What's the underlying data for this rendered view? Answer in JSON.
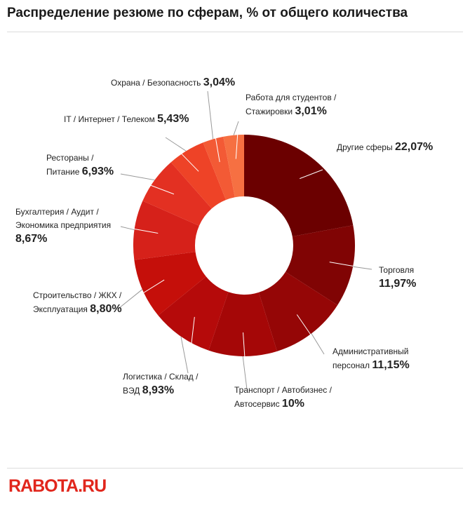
{
  "title": "Распределение резюме по сферам, % от общего количества",
  "logo": "RABOTA.RU",
  "chart_data": {
    "type": "donut",
    "title": "Распределение резюме по сферам, % от общего количества",
    "unit": "%",
    "start_angle_deg": 0,
    "direction": "clockwise",
    "slices": [
      {
        "label": "Другие сферы",
        "value": 22.07,
        "display": "22,07%",
        "color": "#6b0000"
      },
      {
        "label": "Торговля",
        "value": 11.97,
        "display": "11,97%",
        "color": "#800404"
      },
      {
        "label": "Административный персонал",
        "value": 11.15,
        "display": "11,15%",
        "color": "#950606"
      },
      {
        "label": "Транспорт / Автобизнес / Автосервис",
        "value": 10,
        "display": "10%",
        "color": "#a50707"
      },
      {
        "label": "Логистика / Склад / ВЭД",
        "value": 8.93,
        "display": "8,93%",
        "color": "#b50a0a"
      },
      {
        "label": "Строительство / ЖКХ / Эксплуатация",
        "value": 8.8,
        "display": "8,80%",
        "color": "#c50f0a"
      },
      {
        "label": "Бухгалтерия / Аудит / Экономика предприятия",
        "value": 8.67,
        "display": "8,67%",
        "color": "#d6211a"
      },
      {
        "label": "Рестораны / Питание",
        "value": 6.93,
        "display": "6,93%",
        "color": "#e33022"
      },
      {
        "label": "IT / Интернет / Телеком",
        "value": 5.43,
        "display": "5,43%",
        "color": "#ee4327"
      },
      {
        "label": "Охрана / Безопасность",
        "value": 3.04,
        "display": "3,04%",
        "color": "#f35a35"
      },
      {
        "label": "Работа для студентов / Стажировки",
        "value": 3.01,
        "display": "3,01%",
        "color": "#f67042"
      }
    ]
  },
  "labels": {
    "s0": {
      "line1": "Другие сферы",
      "pct": "22,07%"
    },
    "s1": {
      "line1": "Торговля",
      "pct": "11,97%"
    },
    "s2": {
      "line1": "Административный",
      "line2": "персонал",
      "pct": "11,15%"
    },
    "s3": {
      "line1": "Транспорт / Автобизнес /",
      "line2": "Автосервис",
      "pct": "10%"
    },
    "s4": {
      "line1": "Логистика / Склад /",
      "line2": "ВЭД",
      "pct": "8,93%"
    },
    "s5": {
      "line1": "Строительство / ЖКХ /",
      "line2": "Эксплуатация",
      "pct": "8,80%"
    },
    "s6": {
      "line1": "Бухгалтерия / Аудит /",
      "line2": "Экономика предприятия",
      "pct": "8,67%"
    },
    "s7": {
      "line1": "Рестораны /",
      "line2": "Питание",
      "pct": "6,93%"
    },
    "s8": {
      "line1": "IT / Интернет / Телеком",
      "pct": "5,43%"
    },
    "s9": {
      "line1": "Охрана / Безопасность",
      "pct": "3,04%"
    },
    "s10": {
      "line1": "Работа для студентов /",
      "line2": "Стажировки",
      "pct": "3,01%"
    }
  }
}
